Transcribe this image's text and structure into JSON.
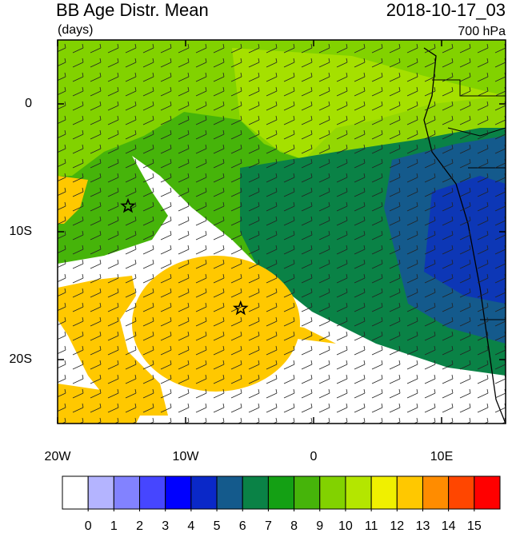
{
  "chart_data": {
    "type": "map",
    "title": "BB Age Distr. Mean",
    "units": "(days)",
    "date": "2018-10-17_03",
    "level": "700 hPa",
    "xlim": [
      -20,
      15
    ],
    "ylim": [
      -25,
      5
    ],
    "xticks": [
      {
        "value": -20,
        "label": "20W"
      },
      {
        "value": -10,
        "label": "10W"
      },
      0,
      {
        "value": 10,
        "label": "10E"
      }
    ],
    "yticks": [
      0,
      {
        "value": -10,
        "label": "10S"
      },
      {
        "value": -20,
        "label": "20S"
      }
    ],
    "colorbar": {
      "ticks": [
        0,
        1,
        2,
        3,
        4,
        5,
        6,
        7,
        8,
        9,
        10,
        11,
        12,
        13,
        14,
        15
      ],
      "colors": [
        "#ffffff",
        "#b4b4ff",
        "#8282ff",
        "#4646ff",
        "#0000ff",
        "#0a28c8",
        "#145a8c",
        "#0a8246",
        "#14a014",
        "#46b40a",
        "#82d200",
        "#b4e600",
        "#f0f000",
        "#ffc800",
        "#ff8c00",
        "#ff4600",
        "#ff0000"
      ]
    },
    "markers": [
      {
        "lon": -14.5,
        "lat": -8
      },
      {
        "lon": -5.7,
        "lat": -16
      }
    ]
  }
}
